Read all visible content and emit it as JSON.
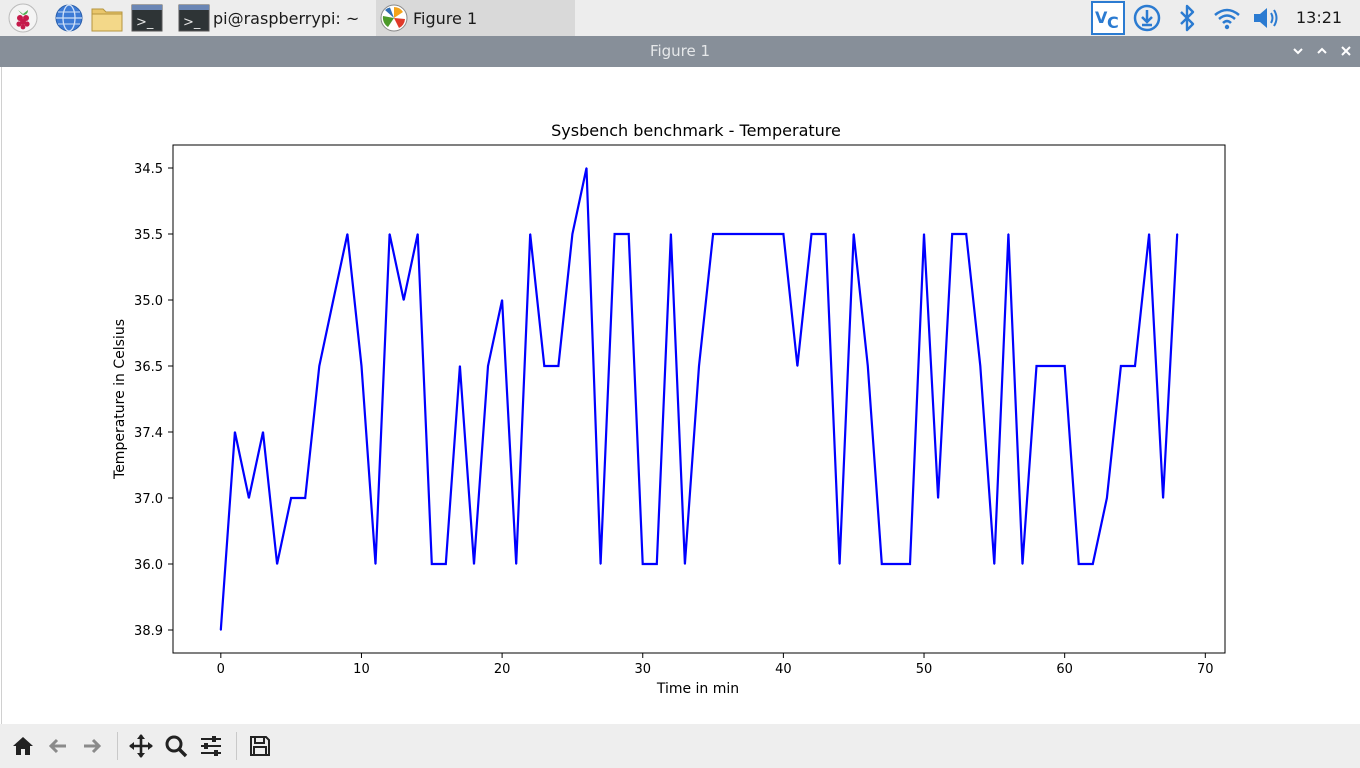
{
  "taskbar": {
    "launchers": [
      {
        "name": "raspberry-menu-icon"
      },
      {
        "name": "browser-icon"
      },
      {
        "name": "file-manager-icon"
      },
      {
        "name": "terminal-icon"
      }
    ],
    "tasks": [
      {
        "label": "pi@raspberrypi: ~",
        "icon": "terminal-icon",
        "active": false
      },
      {
        "label": "Figure 1",
        "icon": "matplotlib-icon",
        "active": true
      }
    ],
    "tray": [
      "vnc-icon",
      "updater-icon",
      "bluetooth-icon",
      "wifi-icon",
      "volume-icon"
    ],
    "clock": "13:21"
  },
  "window": {
    "title": "Figure 1",
    "controls": [
      "minimize",
      "maximize",
      "close"
    ]
  },
  "chart_data": {
    "type": "line",
    "title": "Sysbench benchmark - Temperature",
    "xlabel": "Time in min",
    "ylabel": "Temperature in Celsius",
    "xlim": [
      -3.4,
      71.4
    ],
    "x_ticks": [
      0,
      10,
      20,
      30,
      40,
      50,
      60,
      70
    ],
    "y_category_ticks": [
      "38.9",
      "36.0",
      "37.0",
      "37.4",
      "36.5",
      "35.0",
      "35.5",
      "34.5"
    ],
    "color": "#0000ff",
    "series": [
      {
        "x": [
          0,
          1,
          2,
          3,
          4,
          5,
          6,
          7,
          8,
          9,
          10,
          11,
          12,
          13,
          14,
          15,
          16,
          17,
          18,
          19,
          20,
          21,
          22,
          23,
          24,
          25,
          26,
          27,
          28,
          29,
          30,
          31,
          32,
          33,
          34,
          35,
          36,
          37,
          38,
          39,
          40,
          41,
          42,
          43,
          44,
          45,
          46,
          47,
          48,
          49,
          50,
          51,
          52,
          53,
          54,
          55,
          56,
          57,
          58,
          59,
          60,
          61,
          62,
          63,
          64,
          65,
          66,
          67,
          68
        ],
        "y": [
          "38.9",
          "37.4",
          "37.0",
          "37.4",
          "36.0",
          "37.0",
          "37.0",
          "36.5",
          "35.0",
          "35.5",
          "36.5",
          "36.0",
          "35.5",
          "35.0",
          "35.5",
          "36.0",
          "36.0",
          "36.5",
          "36.0",
          "36.5",
          "35.0",
          "36.0",
          "35.5",
          "36.5",
          "36.5",
          "35.5",
          "34.5",
          "36.0",
          "35.5",
          "35.5",
          "36.0",
          "36.0",
          "35.5",
          "36.0",
          "36.5",
          "35.5",
          "35.5",
          "35.5",
          "35.5",
          "35.5",
          "35.5",
          "36.5",
          "35.5",
          "35.5",
          "36.0",
          "35.5",
          "36.5",
          "36.0",
          "36.0",
          "36.0",
          "35.5",
          "37.0",
          "35.5",
          "35.5",
          "36.5",
          "36.0",
          "35.5",
          "36.0",
          "36.5",
          "36.5",
          "36.5",
          "36.0",
          "36.0",
          "37.0",
          "36.5",
          "36.5",
          "35.5",
          "37.0",
          "35.5"
        ]
      }
    ]
  },
  "toolbar": {
    "tools": [
      "home-icon",
      "back-icon",
      "forward-icon",
      "pan-icon",
      "zoom-icon",
      "configure-subplots-icon",
      "save-icon"
    ]
  }
}
